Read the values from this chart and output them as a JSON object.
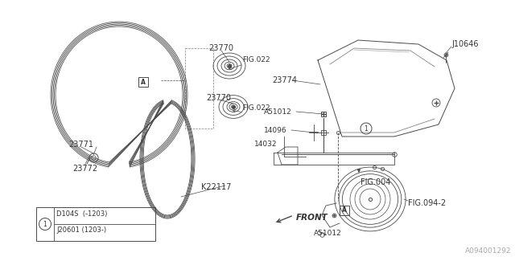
{
  "bg_color": "#ffffff",
  "line_color": "#4a4a4a",
  "text_color": "#333333",
  "watermark": "A094001292",
  "labels": {
    "23770_top": "23770",
    "23770_bot": "23770",
    "fig022_top": "FIG.022",
    "fig022_bot": "FIG.022",
    "23774": "23774",
    "J10646": "J10646",
    "A51012_top": "A51012",
    "A51012_bot": "A51012",
    "14096": "14096",
    "14032": "14032",
    "FIG004": "FIG.004",
    "FIG094": "FIG.094-2",
    "23771": "23771",
    "23772": "23772",
    "K22117": "K22117",
    "FRONT": "FRONT",
    "legend1": "D104S  (-1203)",
    "legend2": "J20601 (1203-)"
  }
}
